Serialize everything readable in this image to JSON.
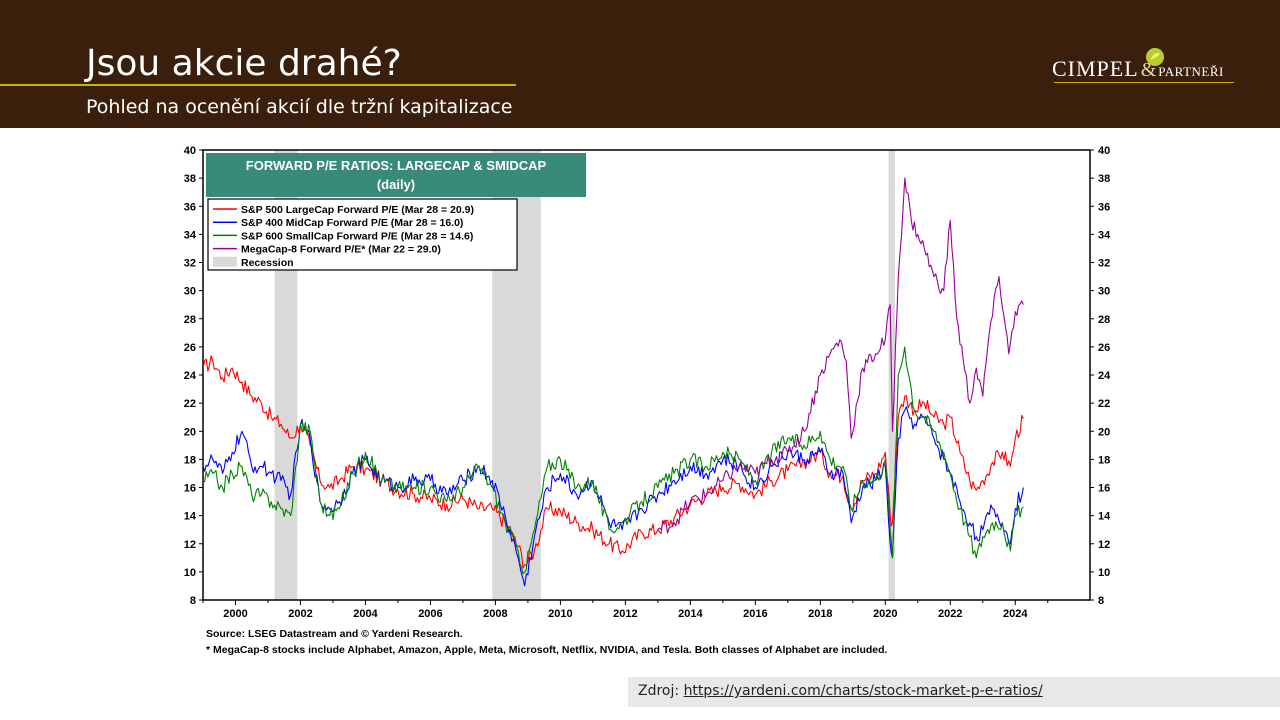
{
  "slide": {
    "title": "Jsou akcie drahé?",
    "subtitle": "Pohled na ocenění akcií dle tržní kapitalizace",
    "logo_main": "CIMPEL",
    "logo_amp": "&",
    "logo_sub": "PARTNEŘI",
    "source_label": "Zdroj:",
    "source_link": "https://yardeni.com/charts/stock-market-p-e-ratios/"
  },
  "chart_data": {
    "type": "line",
    "title": "FORWARD P/E RATIOS: LARGECAP & SMIDCAP",
    "subtitle": "(daily)",
    "xlim": [
      1999.0,
      2026.3
    ],
    "ylim": [
      8,
      40
    ],
    "x_ticks": [
      "2000",
      "2002",
      "2004",
      "2006",
      "2008",
      "2010",
      "2012",
      "2014",
      "2016",
      "2018",
      "2020",
      "2022",
      "2024"
    ],
    "y_ticks": [
      "8",
      "10",
      "12",
      "14",
      "16",
      "18",
      "20",
      "22",
      "24",
      "26",
      "28",
      "30",
      "32",
      "34",
      "36",
      "38",
      "40"
    ],
    "recessions": [
      [
        2001.2,
        2001.9
      ],
      [
        2007.9,
        2009.4
      ],
      [
        2020.1,
        2020.3
      ]
    ],
    "recession_label": "Recession",
    "legend_position": "top-left",
    "grid": false,
    "colors": {
      "sp500": "#ff0000",
      "sp400": "#0000ff",
      "sp600": "#008000",
      "mega8": "#990099",
      "recession": "#d9d9d9",
      "title_bg": "#3a8a7a"
    },
    "series": [
      {
        "name": "S&P 500 LargeCap Forward P/E (Mar 28 = 20.9)",
        "color": "#ff0000",
        "x": [
          1999.0,
          1999.3,
          1999.6,
          1999.9,
          2000.2,
          2000.5,
          2000.8,
          2001.1,
          2001.4,
          2001.7,
          2002.0,
          2002.3,
          2002.6,
          2002.9,
          2003.2,
          2003.6,
          2004.0,
          2004.5,
          2005.0,
          2005.5,
          2006.0,
          2006.5,
          2007.0,
          2007.5,
          2007.9,
          2008.3,
          2008.7,
          2008.9,
          2009.2,
          2009.6,
          2010.0,
          2010.5,
          2011.0,
          2011.5,
          2011.9,
          2012.5,
          2013.0,
          2013.5,
          2014.0,
          2014.5,
          2015.0,
          2015.5,
          2016.0,
          2016.5,
          2017.0,
          2017.5,
          2018.0,
          2018.3,
          2018.7,
          2018.95,
          2019.3,
          2019.7,
          2020.0,
          2020.15,
          2020.22,
          2020.4,
          2020.6,
          2020.9,
          2021.2,
          2021.5,
          2021.8,
          2022.0,
          2022.3,
          2022.6,
          2022.8,
          2023.0,
          2023.3,
          2023.6,
          2023.85,
          2024.0,
          2024.25
        ],
        "values": [
          24.5,
          25.0,
          23.8,
          24.5,
          23.5,
          22.5,
          22.0,
          21.0,
          20.5,
          19.5,
          20.5,
          19.0,
          16.5,
          16.0,
          16.5,
          17.5,
          17.3,
          16.5,
          15.8,
          15.5,
          15.2,
          14.8,
          15.2,
          14.5,
          14.5,
          13.5,
          11.8,
          10.5,
          11.5,
          14.5,
          14.3,
          13.5,
          13.0,
          12.0,
          11.5,
          12.8,
          13.0,
          13.8,
          14.8,
          15.5,
          16.0,
          16.3,
          15.5,
          16.5,
          17.2,
          17.8,
          18.5,
          17.0,
          16.8,
          14.5,
          16.5,
          17.0,
          18.5,
          14.0,
          13.5,
          21.0,
          22.5,
          21.5,
          22.0,
          21.0,
          20.5,
          21.0,
          18.5,
          16.5,
          15.8,
          16.5,
          17.8,
          18.5,
          17.5,
          19.5,
          20.9
        ]
      },
      {
        "name": "S&P 400 MidCap Forward P/E (Mar 28 = 16.0)",
        "color": "#0000ff",
        "x": [
          1999.0,
          1999.3,
          1999.6,
          1999.9,
          2000.2,
          2000.5,
          2000.8,
          2001.1,
          2001.4,
          2001.7,
          2002.0,
          2002.3,
          2002.6,
          2002.9,
          2003.2,
          2003.6,
          2004.0,
          2004.5,
          2005.0,
          2005.5,
          2006.0,
          2006.5,
          2007.0,
          2007.5,
          2007.9,
          2008.3,
          2008.7,
          2008.9,
          2009.2,
          2009.6,
          2010.0,
          2010.5,
          2011.0,
          2011.5,
          2011.9,
          2012.5,
          2013.0,
          2013.5,
          2014.0,
          2014.5,
          2015.0,
          2015.5,
          2016.0,
          2016.5,
          2017.0,
          2017.5,
          2018.0,
          2018.3,
          2018.7,
          2018.95,
          2019.3,
          2019.7,
          2020.0,
          2020.15,
          2020.22,
          2020.4,
          2020.6,
          2020.9,
          2021.2,
          2021.5,
          2021.8,
          2022.0,
          2022.3,
          2022.6,
          2022.8,
          2023.0,
          2023.3,
          2023.6,
          2023.85,
          2024.0,
          2024.25
        ],
        "values": [
          17.5,
          18.0,
          17.0,
          18.5,
          20.0,
          17.5,
          17.5,
          17.0,
          16.5,
          15.5,
          20.5,
          19.5,
          15.0,
          14.5,
          15.0,
          17.0,
          18.0,
          16.5,
          16.0,
          16.5,
          16.5,
          15.5,
          16.5,
          17.5,
          16.5,
          14.0,
          11.0,
          9.0,
          12.5,
          16.0,
          17.0,
          15.5,
          16.5,
          13.5,
          13.0,
          14.5,
          15.5,
          16.5,
          17.5,
          17.0,
          18.0,
          17.5,
          16.0,
          17.5,
          18.5,
          18.0,
          18.5,
          17.0,
          17.0,
          13.5,
          16.0,
          16.5,
          17.5,
          12.0,
          11.0,
          19.5,
          21.5,
          20.5,
          21.0,
          19.5,
          18.0,
          17.0,
          15.0,
          13.5,
          12.5,
          13.0,
          14.5,
          13.5,
          12.0,
          14.5,
          16.0
        ]
      },
      {
        "name": "S&P 600 SmallCap Forward P/E (Mar 28 = 14.6)",
        "color": "#008000",
        "x": [
          1999.0,
          1999.3,
          1999.6,
          1999.9,
          2000.2,
          2000.5,
          2000.8,
          2001.1,
          2001.4,
          2001.7,
          2002.0,
          2002.3,
          2002.6,
          2002.9,
          2003.2,
          2003.6,
          2004.0,
          2004.5,
          2005.0,
          2005.5,
          2006.0,
          2006.5,
          2007.0,
          2007.5,
          2007.9,
          2008.3,
          2008.7,
          2008.9,
          2009.2,
          2009.6,
          2010.0,
          2010.5,
          2011.0,
          2011.5,
          2011.9,
          2012.5,
          2013.0,
          2013.5,
          2014.0,
          2014.5,
          2015.0,
          2015.5,
          2016.0,
          2016.5,
          2017.0,
          2017.5,
          2018.0,
          2018.3,
          2018.7,
          2018.95,
          2019.3,
          2019.7,
          2020.0,
          2020.15,
          2020.22,
          2020.4,
          2020.6,
          2020.9,
          2021.2,
          2021.5,
          2021.8,
          2022.0,
          2022.3,
          2022.6,
          2022.8,
          2023.0,
          2023.3,
          2023.6,
          2023.85,
          2024.0,
          2024.25
        ],
        "values": [
          16.5,
          17.0,
          16.0,
          17.0,
          17.5,
          15.5,
          15.5,
          15.0,
          14.5,
          14.0,
          20.5,
          20.0,
          15.0,
          14.0,
          14.5,
          17.0,
          18.5,
          16.5,
          16.0,
          16.0,
          16.0,
          15.0,
          16.0,
          17.5,
          16.0,
          13.5,
          11.5,
          10.0,
          13.0,
          17.5,
          18.0,
          16.0,
          16.5,
          13.0,
          13.5,
          15.0,
          16.0,
          17.0,
          18.0,
          17.5,
          18.5,
          18.0,
          16.5,
          18.5,
          19.5,
          19.0,
          20.0,
          18.0,
          17.5,
          14.5,
          16.5,
          16.5,
          18.0,
          13.0,
          11.0,
          24.0,
          26.0,
          21.5,
          21.0,
          20.0,
          18.5,
          17.0,
          14.5,
          12.5,
          11.0,
          12.5,
          13.5,
          13.5,
          11.5,
          14.0,
          14.6
        ]
      },
      {
        "name": "MegaCap-8 Forward P/E* (Mar 22 = 29.0)",
        "color": "#990099",
        "x": [
          2013.0,
          2013.5,
          2014.0,
          2014.5,
          2015.0,
          2015.5,
          2016.0,
          2016.5,
          2017.0,
          2017.5,
          2018.0,
          2018.3,
          2018.6,
          2018.8,
          2018.95,
          2019.3,
          2019.7,
          2020.0,
          2020.15,
          2020.22,
          2020.4,
          2020.6,
          2020.8,
          2021.0,
          2021.2,
          2021.5,
          2021.8,
          2022.0,
          2022.2,
          2022.4,
          2022.6,
          2022.8,
          2023.0,
          2023.2,
          2023.5,
          2023.8,
          2024.0,
          2024.25
        ],
        "values": [
          13.0,
          13.5,
          15.0,
          15.5,
          16.5,
          17.5,
          17.0,
          18.0,
          18.5,
          20.0,
          24.0,
          25.5,
          26.5,
          25.0,
          19.5,
          24.5,
          25.5,
          26.5,
          29.0,
          20.0,
          31.0,
          38.0,
          35.0,
          34.0,
          33.0,
          31.0,
          30.0,
          35.0,
          28.0,
          25.0,
          22.0,
          24.5,
          22.5,
          27.0,
          31.0,
          25.5,
          28.5,
          29.0
        ]
      }
    ],
    "footnotes": [
      "Source: LSEG Datastream and © Yardeni Research.",
      "* MegaCap-8 stocks include Alphabet, Amazon, Apple, Meta, Microsoft, Netflix, NVIDIA, and Tesla. Both classes of Alphabet are included."
    ]
  }
}
